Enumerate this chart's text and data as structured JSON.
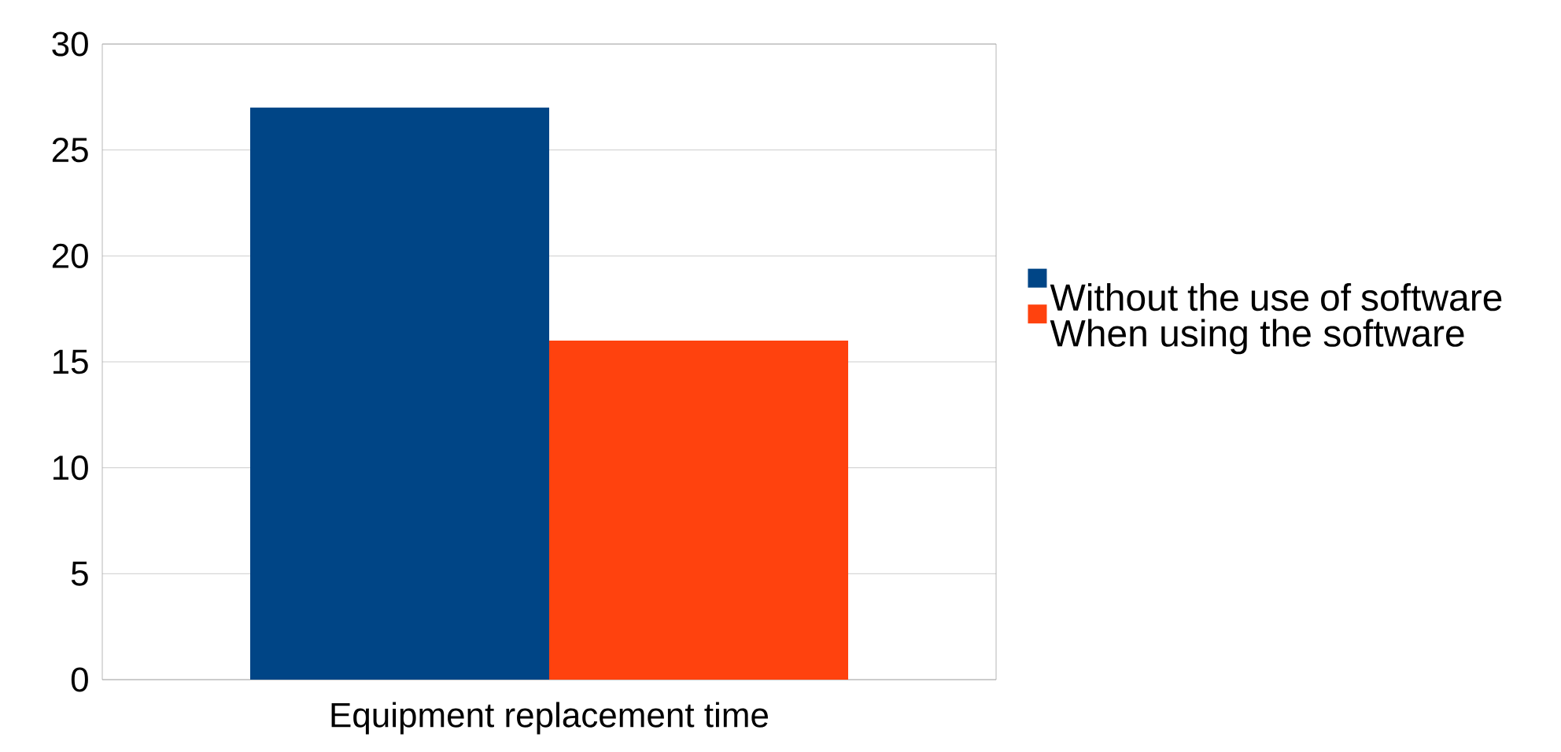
{
  "chart_data": {
    "type": "bar",
    "categories": [
      "Equipment replacement time"
    ],
    "series": [
      {
        "name": "Without the use of software",
        "color": "#004586",
        "values": [
          27
        ]
      },
      {
        "name": "When using the software",
        "color": "#ff420e",
        "values": [
          16
        ]
      }
    ],
    "ylim": [
      0,
      30
    ],
    "yticks": [
      0,
      5,
      10,
      15,
      20,
      25,
      30
    ],
    "grid": "y",
    "legend": "right"
  }
}
